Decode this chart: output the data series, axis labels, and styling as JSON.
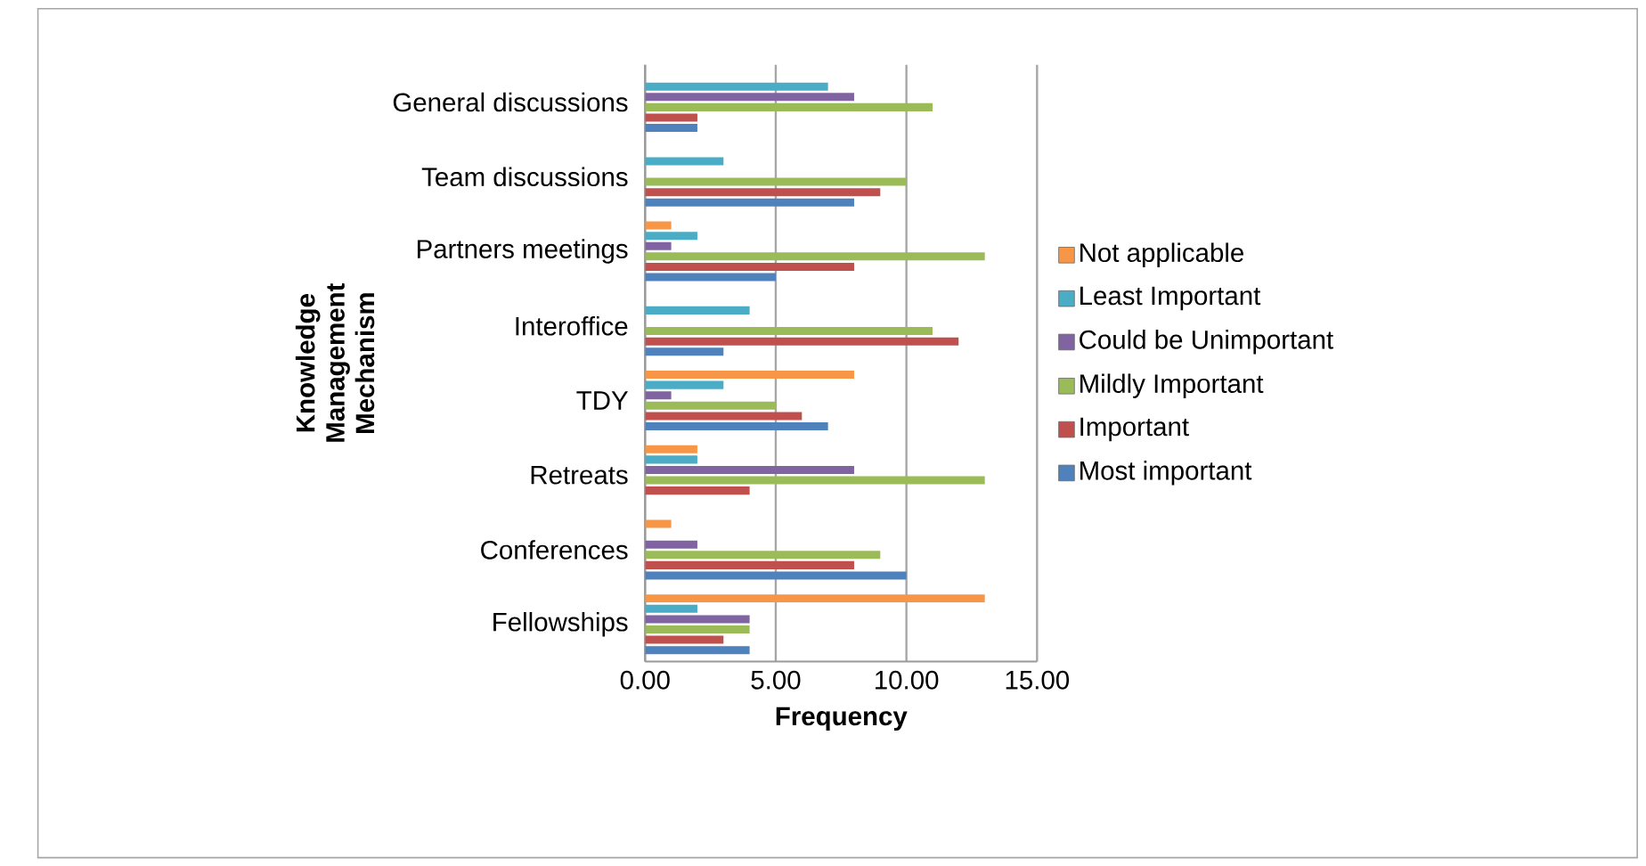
{
  "chart_data": {
    "type": "bar",
    "orientation": "horizontal",
    "categories": [
      "General discussions",
      "Team discussions",
      "Partners meetings",
      "Interoffice",
      "TDY",
      "Retreats",
      "Conferences",
      "Fellowships"
    ],
    "series": [
      {
        "name": "Most important",
        "color": "#4f81bd",
        "values": [
          2,
          8,
          5,
          3,
          7,
          0,
          10,
          4
        ]
      },
      {
        "name": "Important",
        "color": "#c0504d",
        "values": [
          2,
          9,
          8,
          12,
          6,
          4,
          8,
          3
        ]
      },
      {
        "name": "Mildly Important",
        "color": "#9bbb59",
        "values": [
          11,
          10,
          13,
          11,
          5,
          13,
          9,
          4
        ]
      },
      {
        "name": "Could be Unimportant",
        "color": "#8064a2",
        "values": [
          8,
          0,
          1,
          0,
          1,
          8,
          2,
          4
        ]
      },
      {
        "name": "Least Important",
        "color": "#4bacc6",
        "values": [
          7,
          3,
          2,
          4,
          3,
          2,
          0,
          2
        ]
      },
      {
        "name": "Not applicable",
        "color": "#f79646",
        "values": [
          0,
          0,
          1,
          0,
          8,
          2,
          1,
          13
        ]
      }
    ],
    "xlim": [
      0,
      15
    ],
    "xticks": [
      {
        "value": 0,
        "label": "0.00"
      },
      {
        "value": 5,
        "label": "5.00"
      },
      {
        "value": 10,
        "label": "10.00"
      },
      {
        "value": 15,
        "label": "15.00"
      }
    ],
    "xlabel": "**Frequency**",
    "ylabel": "**Knowledge Management Mechanism**",
    "grid": "x",
    "legend": "right"
  }
}
